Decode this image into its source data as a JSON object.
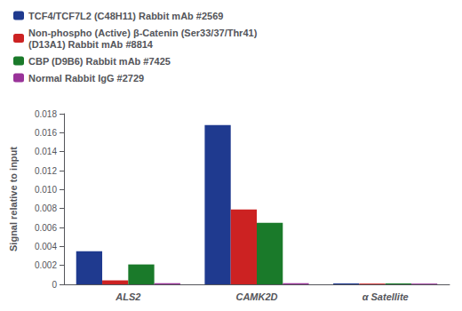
{
  "chart_data": {
    "type": "bar",
    "categories": [
      "ALS2",
      "CAMK2D",
      "α Satellite"
    ],
    "series": [
      {
        "name": "TCF4/TCF7L2 (C48H11) Rabbit mAb #2569",
        "color": "#1f3a8f",
        "values": [
          0.0035,
          0.0168,
          0.0001
        ]
      },
      {
        "name": "Non-phospho (Active) β-Catenin (Ser33/37/Thr41)\n(D13A1) Rabbit mAb #8814",
        "color": "#cc2222",
        "values": [
          0.00042,
          0.0079,
          8e-05
        ]
      },
      {
        "name": "CBP (D9B6) Rabbit mAb #7425",
        "color": "#1a7a2a",
        "values": [
          0.0021,
          0.0065,
          0.0001
        ]
      },
      {
        "name": "Normal Rabbit IgG #2729",
        "color": "#993399",
        "values": [
          0.00012,
          0.00012,
          8e-05
        ]
      }
    ],
    "ylabel": "Signal relative to input",
    "ylim": [
      0,
      0.018
    ],
    "yticks": [
      0,
      0.002,
      0.004,
      0.006,
      0.008,
      {
        "value": 0.01,
        "label": "0.010"
      },
      0.012,
      0.014,
      0.016,
      0.018
    ],
    "grid": false,
    "legend": "upper left"
  }
}
